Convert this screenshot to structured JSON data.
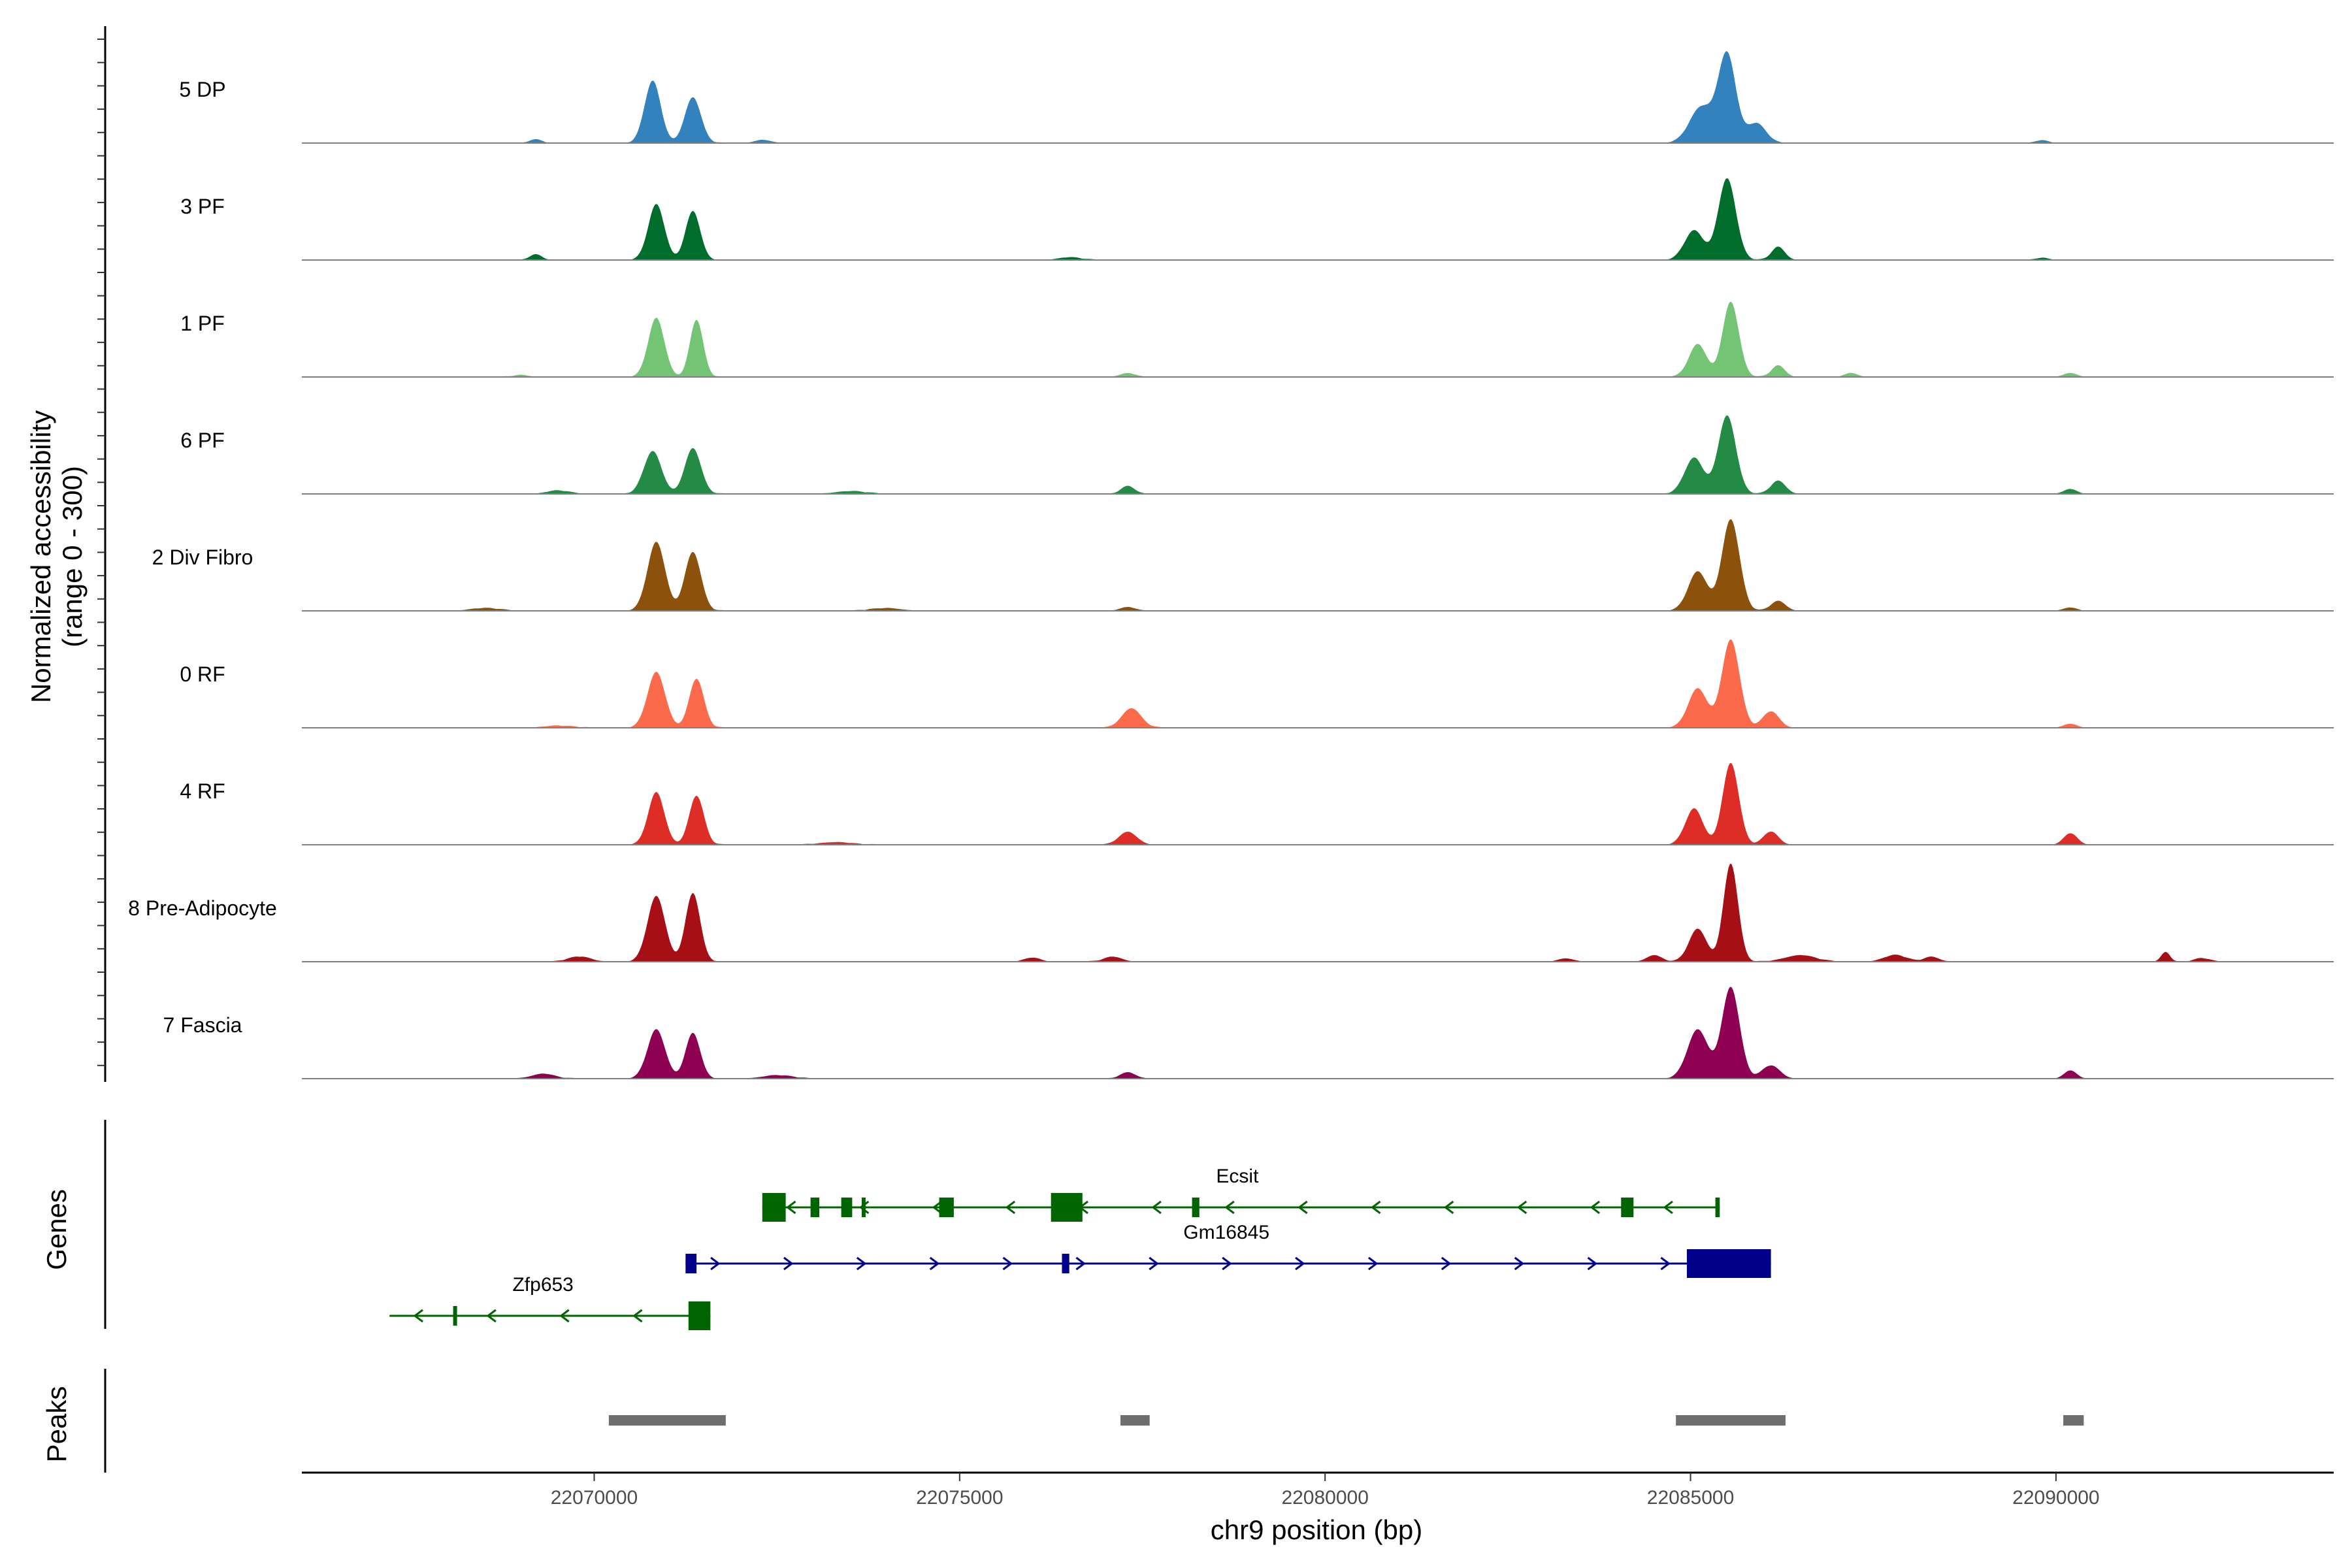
{
  "chart_data": {
    "type": "area",
    "title": "",
    "ylabel_line1": "Normalized accessibility",
    "ylabel_line2": "(range 0 - 300)",
    "xlabel": "chr9 position (bp)",
    "xlim": [
      22066000,
      22093800
    ],
    "ylim": [
      0,
      300
    ],
    "x_ticks": [
      22070000,
      22075000,
      22080000,
      22085000,
      22090000
    ],
    "x_tick_labels": [
      "22070000",
      "22075000",
      "22080000",
      "22085000",
      "22090000"
    ],
    "tracks": [
      {
        "name": "5 DP",
        "color": "#3182BD",
        "peaks": [
          [
            22070800,
            190,
            110
          ],
          [
            22071350,
            140,
            110
          ],
          [
            22085150,
            110,
            160
          ],
          [
            22085500,
            270,
            120
          ],
          [
            22085900,
            60,
            130
          ],
          [
            22069200,
            12,
            80
          ],
          [
            22072300,
            10,
            100
          ],
          [
            22089800,
            8,
            80
          ]
        ]
      },
      {
        "name": "3 PF",
        "color": "#006D2C",
        "peaks": [
          [
            22070850,
            170,
            110
          ],
          [
            22071350,
            150,
            100
          ],
          [
            22085050,
            90,
            130
          ],
          [
            22085500,
            250,
            120
          ],
          [
            22086200,
            40,
            90
          ],
          [
            22069200,
            18,
            80
          ],
          [
            22076500,
            8,
            150
          ],
          [
            22089800,
            6,
            80
          ]
        ]
      },
      {
        "name": "1 PF",
        "color": "#74C476",
        "peaks": [
          [
            22070850,
            180,
            110
          ],
          [
            22071400,
            175,
            90
          ],
          [
            22085100,
            100,
            120
          ],
          [
            22085550,
            230,
            110
          ],
          [
            22086200,
            35,
            90
          ],
          [
            22077300,
            12,
            100
          ],
          [
            22087200,
            12,
            80
          ],
          [
            22090200,
            12,
            80
          ],
          [
            22069000,
            6,
            100
          ]
        ]
      },
      {
        "name": "6 PF",
        "color": "#238B45",
        "peaks": [
          [
            22070800,
            130,
            120
          ],
          [
            22071350,
            140,
            110
          ],
          [
            22085050,
            110,
            130
          ],
          [
            22085500,
            240,
            120
          ],
          [
            22086200,
            40,
            100
          ],
          [
            22077300,
            25,
            90
          ],
          [
            22090200,
            15,
            80
          ],
          [
            22069500,
            10,
            150
          ],
          [
            22073500,
            8,
            200
          ]
        ]
      },
      {
        "name": "2 Div Fibro",
        "color": "#8C510A",
        "peaks": [
          [
            22070850,
            210,
            120
          ],
          [
            22071350,
            180,
            110
          ],
          [
            22085100,
            120,
            130
          ],
          [
            22085550,
            280,
            120
          ],
          [
            22086200,
            30,
            100
          ],
          [
            22077300,
            12,
            100
          ],
          [
            22090200,
            10,
            80
          ],
          [
            22068500,
            8,
            200
          ],
          [
            22074000,
            8,
            200
          ]
        ]
      },
      {
        "name": "0 RF",
        "color": "#FB6A4A",
        "peaks": [
          [
            22070850,
            170,
            120
          ],
          [
            22071400,
            150,
            100
          ],
          [
            22085100,
            120,
            130
          ],
          [
            22085550,
            270,
            120
          ],
          [
            22086100,
            50,
            110
          ],
          [
            22077350,
            60,
            130
          ],
          [
            22090200,
            12,
            80
          ],
          [
            22069500,
            6,
            200
          ]
        ]
      },
      {
        "name": "4 RF",
        "color": "#DE2D26",
        "peaks": [
          [
            22070850,
            160,
            110
          ],
          [
            22071400,
            150,
            100
          ],
          [
            22085050,
            110,
            120
          ],
          [
            22085550,
            250,
            110
          ],
          [
            22086100,
            40,
            100
          ],
          [
            22077300,
            40,
            120
          ],
          [
            22090200,
            35,
            90
          ],
          [
            22073300,
            8,
            200
          ]
        ]
      },
      {
        "name": "8 Pre-Adipocyte",
        "color": "#A50F15",
        "peaks": [
          [
            22070850,
            200,
            120
          ],
          [
            22071350,
            210,
            100
          ],
          [
            22085100,
            100,
            120
          ],
          [
            22085550,
            300,
            100
          ],
          [
            22084500,
            20,
            100
          ],
          [
            22086500,
            20,
            200
          ],
          [
            22087800,
            20,
            150
          ],
          [
            22091500,
            30,
            60
          ],
          [
            22077100,
            15,
            120
          ],
          [
            22076000,
            12,
            100
          ],
          [
            22069800,
            15,
            150
          ],
          [
            22088300,
            15,
            100
          ],
          [
            22083300,
            10,
            100
          ],
          [
            22092000,
            10,
            100
          ]
        ]
      },
      {
        "name": "7 Fascia",
        "color": "#8E0152",
        "peaks": [
          [
            22070850,
            150,
            120
          ],
          [
            22071350,
            140,
            100
          ],
          [
            22085100,
            150,
            140
          ],
          [
            22085550,
            280,
            120
          ],
          [
            22086100,
            40,
            120
          ],
          [
            22077300,
            20,
            100
          ],
          [
            22090200,
            25,
            80
          ],
          [
            22069300,
            15,
            150
          ],
          [
            22072500,
            10,
            200
          ]
        ]
      }
    ],
    "genes": [
      {
        "name": "Ecsit",
        "strand": "-",
        "color": "#006400",
        "start": 22072300,
        "end": 22085400,
        "exons": [
          [
            22072300,
            22072620
          ],
          [
            22072960,
            22073080
          ],
          [
            22073380,
            22073530
          ],
          [
            22073660,
            22073700
          ],
          [
            22074720,
            22074920
          ],
          [
            22076250,
            22076680
          ],
          [
            22078180,
            22078280
          ],
          [
            22084050,
            22084220
          ],
          [
            22085340,
            22085400
          ]
        ]
      },
      {
        "name": "Gm16845",
        "strand": "+",
        "color": "#00008B",
        "start": 22071250,
        "end": 22086100,
        "exons": [
          [
            22071250,
            22071400
          ],
          [
            22076400,
            22076500
          ],
          [
            22084950,
            22086100
          ]
        ]
      },
      {
        "name": "Zfp653",
        "strand": "-",
        "color": "#006400",
        "start": 22067200,
        "end": 22071590,
        "exons": [
          [
            22068070,
            22068110
          ],
          [
            22071290,
            22071590
          ]
        ]
      }
    ],
    "peak_regions": [
      [
        22070200,
        22071800
      ],
      [
        22077200,
        22077600
      ],
      [
        22084800,
        22086300
      ],
      [
        22090100,
        22090380
      ]
    ]
  }
}
